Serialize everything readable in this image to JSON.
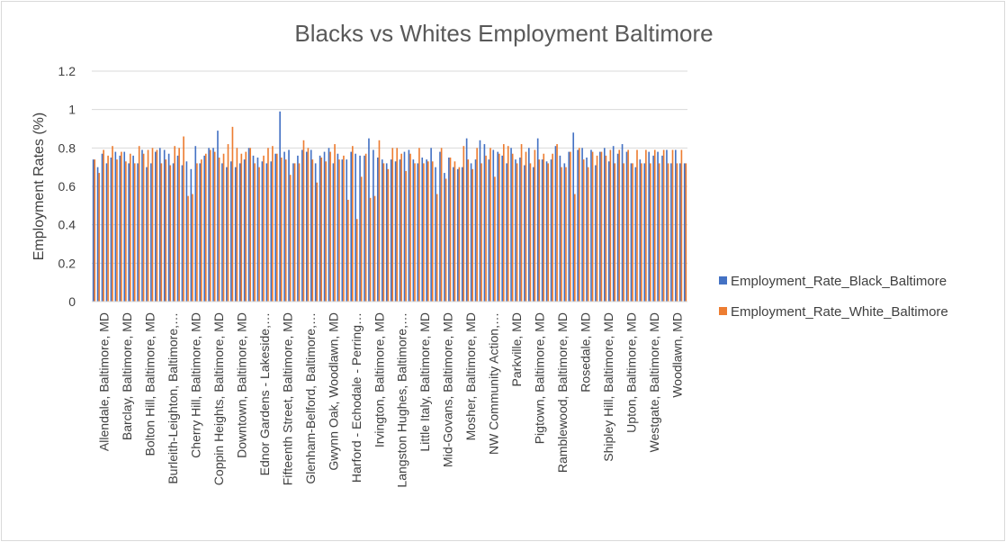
{
  "chart_data": {
    "type": "bar",
    "title": "Blacks vs Whites Employment Baltimore",
    "ylabel": "Employment Rates (%)",
    "xlabel": "",
    "ylim": [
      0,
      1.2
    ],
    "yticks": [
      "0",
      "0.2",
      "0.4",
      "0.6",
      "0.8",
      "1",
      "1.2"
    ],
    "grid": true,
    "legend_position": "right",
    "colors": {
      "black": "#4472c4",
      "white": "#ed7d31",
      "grid": "#d9d9d9"
    },
    "x_tick_labels": [
      "Allendale, Baltimore, MD",
      "Barclay, Baltimore, MD",
      "Bolton Hill, Baltimore, MD",
      "Burleith-Leighton, Baltimore,…",
      "Cherry Hill, Baltimore, MD",
      "Coppin Heights, Baltimore, MD",
      "Downtown, Baltimore, MD",
      "Ednor Gardens - Lakeside,…",
      "Fifteenth Street, Baltimore, MD",
      "Glenham-Belford, Baltimore,…",
      "Gwynn Oak, Woodlawn, MD",
      "Harford - Echodale - Perring…",
      "Irvington, Baltimore, MD",
      "Langston Hughes, Baltimore,…",
      "Little Italy, Baltimore, MD",
      "Mid-Govans, Baltimore, MD",
      "Mosher, Baltimore, MD",
      "NW Community Action,…",
      "Parkville, MD",
      "Pigtown, Baltimore, MD",
      "Ramblewood, Baltimore, MD",
      "Rosedale, MD",
      "Shipley Hill, Baltimore, MD",
      "Upton, Baltimore, MD",
      "Westgate, Baltimore, MD",
      "Woodlawn, MD"
    ],
    "series": [
      {
        "name": "Employment_Rate_Black_Baltimore",
        "values": [
          0.74,
          0.7,
          0.77,
          0.72,
          0.75,
          0.78,
          0.76,
          0.78,
          0.72,
          0.76,
          0.72,
          0.79,
          0.7,
          0.72,
          0.78,
          0.8,
          0.79,
          0.77,
          0.72,
          0.76,
          0.71,
          0.73,
          0.69,
          0.81,
          0.72,
          0.76,
          0.8,
          0.8,
          0.89,
          0.72,
          0.7,
          0.73,
          0.7,
          0.72,
          0.74,
          0.8,
          0.76,
          0.75,
          0.73,
          0.72,
          0.73,
          0.77,
          0.99,
          0.78,
          0.79,
          0.72,
          0.76,
          0.79,
          0.78,
          0.79,
          0.72,
          0.76,
          0.78,
          0.8,
          0.72,
          0.77,
          0.74,
          0.74,
          0.78,
          0.77,
          0.76,
          0.76,
          0.85,
          0.79,
          0.75,
          0.74,
          0.72,
          0.74,
          0.73,
          0.74,
          0.78,
          0.79,
          0.74,
          0.72,
          0.75,
          0.74,
          0.8,
          0.7,
          0.78,
          0.67,
          0.75,
          0.7,
          0.69,
          0.7,
          0.85,
          0.72,
          0.74,
          0.84,
          0.82,
          0.74,
          0.79,
          0.78,
          0.76,
          0.72,
          0.8,
          0.74,
          0.75,
          0.71,
          0.8,
          0.7,
          0.85,
          0.74,
          0.73,
          0.74,
          0.81,
          0.76,
          0.72,
          0.78,
          0.88,
          0.79,
          0.8,
          0.75,
          0.79,
          0.71,
          0.78,
          0.8,
          0.73,
          0.81,
          0.77,
          0.82,
          0.78,
          0.72,
          0.7,
          0.74,
          0.72,
          0.78,
          0.76,
          0.78,
          0.76,
          0.79,
          0.72,
          0.79,
          0.72,
          0.72
        ],
        "fill_color": "#4472c4"
      },
      {
        "name": "Employment_Rate_White_Baltimore",
        "values": [
          0.74,
          0.67,
          0.79,
          0.76,
          0.81,
          0.74,
          0.78,
          0.73,
          0.77,
          0.72,
          0.81,
          0.77,
          0.79,
          0.8,
          0.79,
          0.72,
          0.74,
          0.71,
          0.81,
          0.8,
          0.86,
          0.55,
          0.56,
          0.72,
          0.74,
          0.77,
          0.79,
          0.78,
          0.75,
          0.77,
          0.82,
          0.91,
          0.8,
          0.77,
          0.78,
          0.8,
          0.72,
          0.7,
          0.76,
          0.8,
          0.81,
          0.77,
          0.75,
          0.74,
          0.66,
          0.72,
          0.72,
          0.84,
          0.8,
          0.74,
          0.62,
          0.75,
          0.73,
          0.78,
          0.82,
          0.74,
          0.76,
          0.53,
          0.81,
          0.43,
          0.65,
          0.77,
          0.54,
          0.55,
          0.84,
          0.72,
          0.69,
          0.8,
          0.8,
          0.77,
          0.68,
          0.77,
          0.72,
          0.8,
          0.72,
          0.73,
          0.73,
          0.56,
          0.8,
          0.64,
          0.75,
          0.73,
          0.7,
          0.81,
          0.74,
          0.69,
          0.8,
          0.72,
          0.76,
          0.8,
          0.65,
          0.77,
          0.82,
          0.81,
          0.77,
          0.72,
          0.82,
          0.78,
          0.72,
          0.79,
          0.74,
          0.77,
          0.72,
          0.77,
          0.82,
          0.7,
          0.7,
          0.78,
          0.56,
          0.8,
          0.74,
          0.7,
          0.78,
          0.76,
          0.78,
          0.76,
          0.79,
          0.72,
          0.79,
          0.72,
          0.79,
          0.72,
          0.79,
          0.72,
          0.79,
          0.72,
          0.79,
          0.72,
          0.79,
          0.72,
          0.79,
          0.72,
          0.79,
          0.72
        ],
        "fill_color": "#ed7d31"
      }
    ]
  }
}
